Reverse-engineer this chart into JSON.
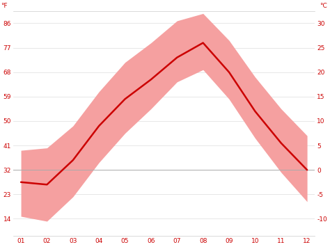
{
  "months": [
    1,
    2,
    3,
    4,
    5,
    6,
    7,
    8,
    9,
    10,
    11,
    12
  ],
  "month_labels": [
    "01",
    "02",
    "03",
    "04",
    "05",
    "06",
    "07",
    "08",
    "09",
    "10",
    "11",
    "12"
  ],
  "avg_temp_c": [
    -2.5,
    -3.0,
    2.0,
    9.0,
    14.5,
    18.5,
    23.0,
    26.0,
    20.0,
    12.0,
    5.5,
    0.0
  ],
  "band_upper_c": [
    4.0,
    4.5,
    9.0,
    16.0,
    22.0,
    26.0,
    30.5,
    32.0,
    26.5,
    19.0,
    12.5,
    7.0
  ],
  "band_lower_c": [
    -9.5,
    -10.5,
    -5.5,
    1.5,
    7.5,
    12.5,
    18.0,
    20.5,
    14.5,
    6.5,
    -0.5,
    -6.5
  ],
  "yticks_c": [
    -10,
    -5,
    0,
    5,
    10,
    15,
    20,
    25,
    30
  ],
  "yticks_f": [
    14,
    23,
    32,
    41,
    50,
    59,
    68,
    77,
    86
  ],
  "ylim_c": [
    -13.5,
    32.5
  ],
  "line_color": "#cc0000",
  "band_color": "#f5a0a0",
  "zero_line_color": "#aaaaaa",
  "grid_color": "#dddddd",
  "axis_label_color": "#cc0000",
  "background_color": "#ffffff",
  "tick_fontsize": 6.5,
  "line_width": 1.8
}
